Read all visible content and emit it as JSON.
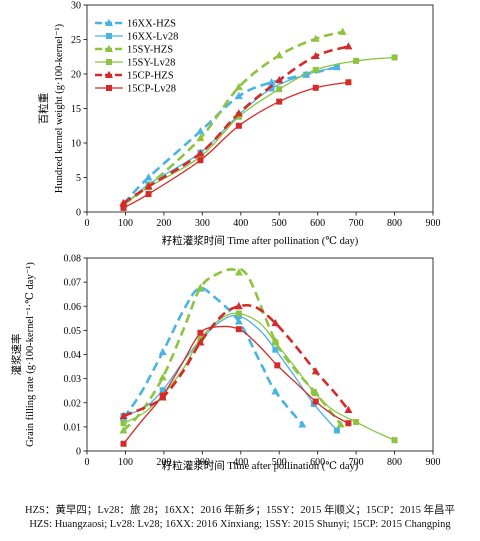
{
  "chart_data": [
    {
      "type": "line",
      "ylabel_cn": "百粒重",
      "ylabel": "Hundred kernel weight (g·100-kernel⁻¹)",
      "xlabel": "籽粒灌浆时间 Time after pollination (℃ day)",
      "xlim": [
        0,
        900
      ],
      "ylim": [
        0,
        30
      ],
      "xticks": [
        "0",
        "100",
        "200",
        "300",
        "400",
        "500",
        "600",
        "700",
        "800",
        "900"
      ],
      "yticks": [
        "0",
        "5",
        "10",
        "15",
        "20",
        "25",
        "30"
      ],
      "legend_position": "top-left",
      "series": [
        {
          "name": "16XX-HZS",
          "color": "#49b3e4",
          "dash": "9,5",
          "width": 2.6,
          "marker": "triangle",
          "x": [
            95,
            160,
            295,
            395,
            480,
            570,
            650
          ],
          "y": [
            1.2,
            5.0,
            11.7,
            16.8,
            18.8,
            19.9,
            21.0
          ]
        },
        {
          "name": "16XX-Lv28",
          "color": "#49b3e4",
          "dash": "",
          "width": 1.3,
          "marker": "square",
          "x": [
            95,
            160,
            295,
            395,
            480,
            570,
            650
          ],
          "y": [
            0.8,
            4.0,
            8.6,
            14.1,
            17.9,
            19.9,
            21.0
          ]
        },
        {
          "name": "15SY-HZS",
          "color": "#8cc43f",
          "dash": "9,5",
          "width": 2.6,
          "marker": "triangle",
          "x": [
            95,
            160,
            295,
            395,
            500,
            595,
            665
          ],
          "y": [
            1.1,
            3.8,
            10.7,
            18.1,
            22.7,
            25.1,
            26.1
          ]
        },
        {
          "name": "15SY-Lv28",
          "color": "#8cc43f",
          "dash": "",
          "width": 1.3,
          "marker": "square",
          "x": [
            95,
            160,
            295,
            395,
            500,
            595,
            700,
            800
          ],
          "y": [
            1.0,
            3.6,
            8.0,
            13.8,
            17.8,
            20.6,
            21.9,
            22.4
          ]
        },
        {
          "name": "15CP-HZS",
          "color": "#d42a2a",
          "dash": "9,5",
          "width": 2.6,
          "marker": "triangle",
          "x": [
            95,
            160,
            295,
            395,
            500,
            595,
            680
          ],
          "y": [
            1.3,
            3.7,
            8.5,
            14.3,
            19.1,
            22.6,
            24.0
          ]
        },
        {
          "name": "15CP-Lv28",
          "color": "#d42a2a",
          "dash": "",
          "width": 1.3,
          "marker": "square",
          "x": [
            95,
            160,
            295,
            395,
            500,
            595,
            680
          ],
          "y": [
            0.6,
            2.6,
            7.5,
            12.5,
            16.0,
            18.0,
            18.8
          ]
        }
      ]
    },
    {
      "type": "line",
      "ylabel_cn": "灌浆速率",
      "ylabel": "Grain filling rate (g·100-kernel⁻¹·℃ day⁻¹)",
      "xlabel": "籽粒灌浆时间 Time after pollination (℃ day)",
      "xlim": [
        0,
        900
      ],
      "ylim": [
        0,
        0.08
      ],
      "xticks": [
        "0",
        "100",
        "200",
        "300",
        "400",
        "500",
        "600",
        "700",
        "800",
        "900"
      ],
      "yticks": [
        "0",
        "0.01",
        "0.02",
        "0.03",
        "0.04",
        "0.05",
        "0.06",
        "0.07",
        "0.08"
      ],
      "series": [
        {
          "name": "16XX-HZS",
          "color": "#49b3e4",
          "dash": "9,5",
          "width": 2.6,
          "marker": "triangle",
          "x": [
            95,
            197,
            295,
            395,
            490,
            560
          ],
          "y": [
            0.0137,
            0.041,
            0.0673,
            0.0537,
            0.0247,
            0.011
          ],
          "curve": [
            [
              95,
              0.0137
            ],
            [
              140,
              0.024
            ],
            [
              197,
              0.041
            ],
            [
              250,
              0.058
            ],
            [
              290,
              0.0673
            ],
            [
              330,
              0.064
            ],
            [
              395,
              0.0537
            ],
            [
              450,
              0.037
            ],
            [
              490,
              0.0247
            ],
            [
              560,
              0.011
            ]
          ]
        },
        {
          "name": "16XX-Lv28",
          "color": "#49b3e4",
          "dash": "",
          "width": 1.3,
          "marker": "square",
          "x": [
            95,
            197,
            295,
            395,
            490,
            590,
            650
          ],
          "y": [
            0.0145,
            0.0252,
            0.046,
            0.056,
            0.042,
            0.0195,
            0.0085
          ],
          "curve": [
            [
              95,
              0.0145
            ],
            [
              150,
              0.018
            ],
            [
              197,
              0.0252
            ],
            [
              250,
              0.037
            ],
            [
              295,
              0.046
            ],
            [
              350,
              0.054
            ],
            [
              395,
              0.056
            ],
            [
              450,
              0.05
            ],
            [
              490,
              0.042
            ],
            [
              540,
              0.031
            ],
            [
              590,
              0.0195
            ],
            [
              650,
              0.0085
            ]
          ]
        },
        {
          "name": "15SY-HZS",
          "color": "#8cc43f",
          "dash": "9,5",
          "width": 2.6,
          "marker": "triangle",
          "x": [
            95,
            197,
            295,
            395,
            490,
            595,
            660
          ],
          "y": [
            0.0085,
            0.0305,
            0.0677,
            0.074,
            0.0455,
            0.024,
            0.011
          ],
          "curve": [
            [
              95,
              0.0085
            ],
            [
              140,
              0.016
            ],
            [
              197,
              0.0305
            ],
            [
              250,
              0.05
            ],
            [
              295,
              0.0677
            ],
            [
              340,
              0.0735
            ],
            [
              380,
              0.0752
            ],
            [
              420,
              0.072
            ],
            [
              490,
              0.0455
            ],
            [
              540,
              0.034
            ],
            [
              595,
              0.024
            ],
            [
              660,
              0.011
            ]
          ]
        },
        {
          "name": "15SY-Lv28",
          "color": "#8cc43f",
          "dash": "",
          "width": 1.3,
          "marker": "square",
          "x": [
            95,
            197,
            295,
            395,
            490,
            590,
            700,
            800
          ],
          "y": [
            0.0115,
            0.0232,
            0.0465,
            0.057,
            0.045,
            0.0245,
            0.012,
            0.0045
          ],
          "curve": [
            [
              95,
              0.0115
            ],
            [
              150,
              0.016
            ],
            [
              197,
              0.0232
            ],
            [
              250,
              0.034
            ],
            [
              295,
              0.0465
            ],
            [
              350,
              0.055
            ],
            [
              395,
              0.057
            ],
            [
              450,
              0.053
            ],
            [
              490,
              0.045
            ],
            [
              540,
              0.035
            ],
            [
              590,
              0.0245
            ],
            [
              640,
              0.017
            ],
            [
              700,
              0.012
            ],
            [
              750,
              0.008
            ],
            [
              800,
              0.0045
            ]
          ]
        },
        {
          "name": "15CP-HZS",
          "color": "#d42a2a",
          "dash": "9,5",
          "width": 2.6,
          "marker": "triangle",
          "x": [
            95,
            197,
            295,
            395,
            490,
            595,
            680
          ],
          "y": [
            0.0145,
            0.0222,
            0.045,
            0.06,
            0.053,
            0.033,
            0.017
          ],
          "curve": [
            [
              95,
              0.0145
            ],
            [
              150,
              0.018
            ],
            [
              197,
              0.0222
            ],
            [
              250,
              0.033
            ],
            [
              295,
              0.045
            ],
            [
              350,
              0.056
            ],
            [
              395,
              0.06
            ],
            [
              440,
              0.0595
            ],
            [
              490,
              0.053
            ],
            [
              540,
              0.044
            ],
            [
              595,
              0.033
            ],
            [
              640,
              0.025
            ],
            [
              680,
              0.017
            ]
          ]
        },
        {
          "name": "15CP-Lv28",
          "color": "#d42a2a",
          "dash": "",
          "width": 1.3,
          "marker": "square",
          "x": [
            95,
            197,
            295,
            395,
            495,
            595,
            680
          ],
          "y": [
            0.003,
            0.023,
            0.049,
            0.0505,
            0.0355,
            0.0205,
            0.0115
          ],
          "curve": [
            [
              95,
              0.003
            ],
            [
              140,
              0.012
            ],
            [
              197,
              0.023
            ],
            [
              250,
              0.037
            ],
            [
              295,
              0.049
            ],
            [
              340,
              0.0515
            ],
            [
              395,
              0.0505
            ],
            [
              445,
              0.044
            ],
            [
              495,
              0.0355
            ],
            [
              545,
              0.028
            ],
            [
              595,
              0.0205
            ],
            [
              640,
              0.015
            ],
            [
              680,
              0.0115
            ]
          ]
        }
      ]
    }
  ],
  "caption_cn": "HZS：黄早四；Lv28：旅 28；16XX：2016 年新乡；15SY：2015 年顺义；15CP：2015 年昌平",
  "caption_en": "HZS: Huangzaosi; Lv28: Lv28; 16XX: 2016 Xinxiang; 15SY: 2015 Shunyi; 15CP: 2015 Changping"
}
